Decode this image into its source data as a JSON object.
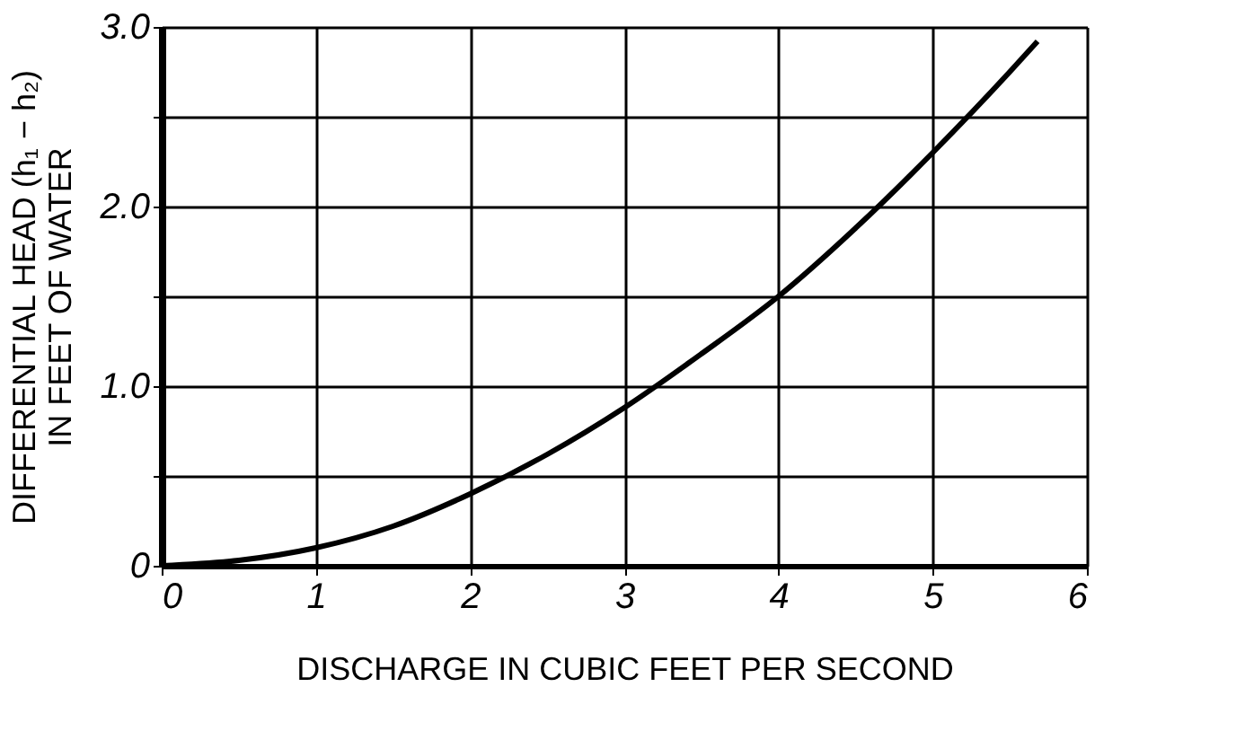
{
  "chart_data": {
    "type": "line",
    "xlabel": "DISCHARGE IN CUBIC FEET PER SECOND",
    "ylabel": "DIFFERENTIAL HEAD (h₁ − h₂)\nIN FEET OF WATER",
    "x": [
      0,
      0.5,
      1,
      1.5,
      2,
      2.5,
      3,
      3.5,
      4,
      4.5,
      5,
      5.5,
      5.68
    ],
    "series": [
      {
        "color": "#000000",
        "values": [
          0,
          0.03,
          0.1,
          0.22,
          0.4,
          0.62,
          0.88,
          1.18,
          1.5,
          1.88,
          2.3,
          2.75,
          2.92
        ]
      }
    ],
    "xlim": [
      0,
      6
    ],
    "xticks": [
      0,
      1,
      2,
      3,
      4,
      5,
      6
    ],
    "ylim": [
      0,
      3
    ],
    "yticks": [
      0,
      {
        "value": 0.5,
        "label": null
      },
      {
        "value": 1,
        "label": "1.0"
      },
      {
        "value": 1.5,
        "label": null
      },
      {
        "value": 2,
        "label": "2.0"
      },
      {
        "value": 2.5,
        "label": null
      },
      {
        "value": 3,
        "label": "3.0"
      }
    ],
    "grid": true,
    "marker": "none",
    "line_style": "solid"
  }
}
